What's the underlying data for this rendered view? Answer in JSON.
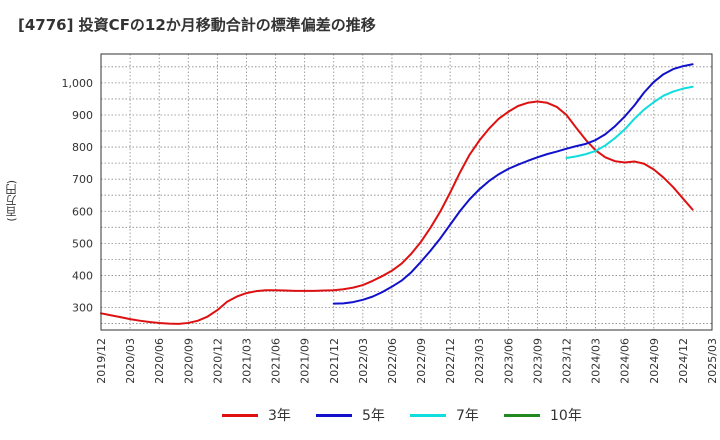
{
  "title": "[4776]  投資CFの12か月移動合計の標準偏差の推移",
  "chart_data": {
    "type": "line",
    "ylabel": "(百万円)",
    "xlim": [
      "2019-12",
      "2025-03"
    ],
    "ylim": [
      230,
      1090
    ],
    "yticks": [
      300,
      400,
      500,
      600,
      700,
      800,
      900,
      1000
    ],
    "ytick_labels": [
      "300",
      "400",
      "500",
      "600",
      "700",
      "800",
      "900",
      "1,000"
    ],
    "xtick_labels": [
      "2019/12",
      "2020/03",
      "2020/06",
      "2020/09",
      "2020/12",
      "2021/03",
      "2021/06",
      "2021/09",
      "2021/12",
      "2022/03",
      "2022/06",
      "2022/09",
      "2022/12",
      "2023/03",
      "2023/06",
      "2023/09",
      "2023/12",
      "2024/03",
      "2024/06",
      "2024/09",
      "2024/12",
      "2025/03"
    ],
    "grid": true,
    "legend_position": "bottom",
    "series": [
      {
        "name": "3年",
        "color": "#dd1111",
        "points": [
          [
            "2019-12",
            282
          ],
          [
            "2020-01",
            276
          ],
          [
            "2020-02",
            270
          ],
          [
            "2020-03",
            264
          ],
          [
            "2020-04",
            259
          ],
          [
            "2020-05",
            255
          ],
          [
            "2020-06",
            252
          ],
          [
            "2020-07",
            250
          ],
          [
            "2020-08",
            249
          ],
          [
            "2020-09",
            252
          ],
          [
            "2020-10",
            259
          ],
          [
            "2020-11",
            272
          ],
          [
            "2020-12",
            292
          ],
          [
            "2021-01",
            318
          ],
          [
            "2021-02",
            334
          ],
          [
            "2021-03",
            345
          ],
          [
            "2021-04",
            351
          ],
          [
            "2021-05",
            354
          ],
          [
            "2021-06",
            354
          ],
          [
            "2021-07",
            353
          ],
          [
            "2021-08",
            352
          ],
          [
            "2021-09",
            352
          ],
          [
            "2021-10",
            352
          ],
          [
            "2021-11",
            353
          ],
          [
            "2021-12",
            354
          ],
          [
            "2022-01",
            357
          ],
          [
            "2022-02",
            362
          ],
          [
            "2022-03",
            370
          ],
          [
            "2022-04",
            383
          ],
          [
            "2022-05",
            398
          ],
          [
            "2022-06",
            415
          ],
          [
            "2022-07",
            437
          ],
          [
            "2022-08",
            468
          ],
          [
            "2022-09",
            505
          ],
          [
            "2022-10",
            550
          ],
          [
            "2022-11",
            600
          ],
          [
            "2022-12",
            658
          ],
          [
            "2023-01",
            720
          ],
          [
            "2023-02",
            776
          ],
          [
            "2023-03",
            820
          ],
          [
            "2023-04",
            857
          ],
          [
            "2023-05",
            888
          ],
          [
            "2023-06",
            910
          ],
          [
            "2023-07",
            928
          ],
          [
            "2023-08",
            938
          ],
          [
            "2023-09",
            942
          ],
          [
            "2023-10",
            938
          ],
          [
            "2023-11",
            925
          ],
          [
            "2023-12",
            900
          ],
          [
            "2024-01",
            860
          ],
          [
            "2024-02",
            822
          ],
          [
            "2024-03",
            790
          ],
          [
            "2024-04",
            768
          ],
          [
            "2024-05",
            756
          ],
          [
            "2024-06",
            752
          ],
          [
            "2024-07",
            755
          ],
          [
            "2024-08",
            748
          ],
          [
            "2024-09",
            730
          ],
          [
            "2024-10",
            705
          ],
          [
            "2024-11",
            675
          ],
          [
            "2024-12",
            640
          ],
          [
            "2025-01",
            605
          ]
        ]
      },
      {
        "name": "5年",
        "color": "#1111cc",
        "points": [
          [
            "2021-12",
            312
          ],
          [
            "2022-01",
            313
          ],
          [
            "2022-02",
            317
          ],
          [
            "2022-03",
            324
          ],
          [
            "2022-04",
            334
          ],
          [
            "2022-05",
            348
          ],
          [
            "2022-06",
            365
          ],
          [
            "2022-07",
            384
          ],
          [
            "2022-08",
            410
          ],
          [
            "2022-09",
            443
          ],
          [
            "2022-10",
            478
          ],
          [
            "2022-11",
            516
          ],
          [
            "2022-12",
            558
          ],
          [
            "2023-01",
            600
          ],
          [
            "2023-02",
            637
          ],
          [
            "2023-03",
            668
          ],
          [
            "2023-04",
            694
          ],
          [
            "2023-05",
            715
          ],
          [
            "2023-06",
            732
          ],
          [
            "2023-07",
            745
          ],
          [
            "2023-08",
            757
          ],
          [
            "2023-09",
            768
          ],
          [
            "2023-10",
            778
          ],
          [
            "2023-11",
            786
          ],
          [
            "2023-12",
            795
          ],
          [
            "2024-01",
            803
          ],
          [
            "2024-02",
            810
          ],
          [
            "2024-03",
            822
          ],
          [
            "2024-04",
            840
          ],
          [
            "2024-05",
            865
          ],
          [
            "2024-06",
            895
          ],
          [
            "2024-07",
            930
          ],
          [
            "2024-08",
            970
          ],
          [
            "2024-09",
            1003
          ],
          [
            "2024-10",
            1027
          ],
          [
            "2024-11",
            1043
          ],
          [
            "2024-12",
            1052
          ],
          [
            "2025-01",
            1058
          ]
        ]
      },
      {
        "name": "7年",
        "color": "#11dddd",
        "points": [
          [
            "2023-12",
            766
          ],
          [
            "2024-01",
            771
          ],
          [
            "2024-02",
            778
          ],
          [
            "2024-03",
            788
          ],
          [
            "2024-04",
            805
          ],
          [
            "2024-05",
            828
          ],
          [
            "2024-06",
            855
          ],
          [
            "2024-07",
            888
          ],
          [
            "2024-08",
            917
          ],
          [
            "2024-09",
            940
          ],
          [
            "2024-10",
            960
          ],
          [
            "2024-11",
            973
          ],
          [
            "2024-12",
            982
          ],
          [
            "2025-01",
            988
          ]
        ]
      },
      {
        "name": "10年",
        "color": "#228822",
        "points": []
      }
    ]
  }
}
